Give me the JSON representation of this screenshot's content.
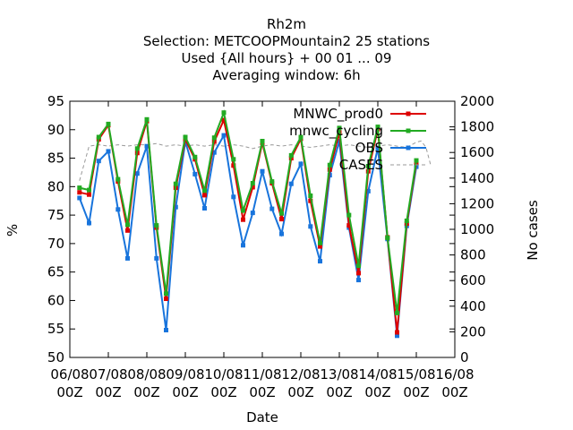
{
  "chart_data": {
    "type": "line",
    "title_lines": [
      "Rh2m",
      "Selection: METCOOPMountain2     25 stations",
      "Used {All hours} + 00 01 ... 09",
      "Averaging window:  6h"
    ],
    "xlabel": "Date",
    "ylabel": "%",
    "y2label": "No cases",
    "ylim": [
      50,
      95
    ],
    "y2lim": [
      0,
      2000
    ],
    "yticks": [
      "50",
      "55",
      "60",
      "65",
      "70",
      "75",
      "80",
      "85",
      "90",
      "95"
    ],
    "y2ticks": [
      "0",
      "200",
      "400",
      "600",
      "800",
      "1000",
      "1200",
      "1400",
      "1600",
      "1800",
      "2000"
    ],
    "xticks": [
      {
        "date": "06/08",
        "hour": "00Z"
      },
      {
        "date": "07/08",
        "hour": "00Z"
      },
      {
        "date": "08/08",
        "hour": "00Z"
      },
      {
        "date": "09/08",
        "hour": "00Z"
      },
      {
        "date": "10/08",
        "hour": "00Z"
      },
      {
        "date": "11/08",
        "hour": "00Z"
      },
      {
        "date": "12/08",
        "hour": "00Z"
      },
      {
        "date": "13/08",
        "hour": "00Z"
      },
      {
        "date": "14/08",
        "hour": "00Z"
      },
      {
        "date": "15/08",
        "hour": "00Z"
      },
      {
        "date": "16/08",
        "hour": "00Z"
      }
    ],
    "legend_position": "top-right",
    "series": [
      {
        "name": "MNWC_prod0",
        "color": "#dd0000",
        "x": [
          "06/08 06Z",
          "06/08 12Z",
          "06/08 18Z",
          "07/08 00Z",
          "07/08 06Z",
          "07/08 12Z",
          "07/08 18Z",
          "08/08 00Z",
          "08/08 06Z",
          "08/08 12Z",
          "08/08 18Z",
          "09/08 00Z",
          "09/08 06Z",
          "09/08 12Z",
          "09/08 18Z",
          "10/08 00Z",
          "10/08 06Z",
          "10/08 12Z",
          "10/08 18Z",
          "11/08 00Z",
          "11/08 06Z",
          "11/08 12Z",
          "11/08 18Z",
          "12/08 00Z",
          "12/08 06Z",
          "12/08 12Z",
          "12/08 18Z",
          "13/08 00Z",
          "13/08 06Z",
          "13/08 12Z",
          "13/08 18Z",
          "14/08 00Z",
          "14/08 06Z",
          "14/08 12Z",
          "14/08 18Z",
          "15/08 00Z"
        ],
        "values": [
          79.0,
          78.6,
          88.3,
          90.8,
          80.9,
          72.3,
          85.9,
          91.5,
          72.8,
          60.3,
          79.8,
          88.3,
          84.8,
          78.5,
          87.9,
          91.7,
          83.7,
          74.2,
          79.9,
          87.7,
          80.6,
          74.3,
          85.0,
          88.4,
          77.5,
          69.5,
          83.0,
          89.5,
          73.2,
          64.8,
          82.7,
          90.1,
          71.1,
          54.4,
          73.5,
          84.2
        ]
      },
      {
        "name": "mnwc_cycling",
        "color": "#22aa22",
        "x": [
          "06/08 06Z",
          "06/08 12Z",
          "06/08 18Z",
          "07/08 00Z",
          "07/08 06Z",
          "07/08 12Z",
          "07/08 18Z",
          "08/08 00Z",
          "08/08 06Z",
          "08/08 12Z",
          "08/08 18Z",
          "09/08 00Z",
          "09/08 06Z",
          "09/08 12Z",
          "09/08 18Z",
          "10/08 00Z",
          "10/08 06Z",
          "10/08 12Z",
          "10/08 18Z",
          "11/08 00Z",
          "11/08 06Z",
          "11/08 12Z",
          "11/08 18Z",
          "12/08 00Z",
          "12/08 06Z",
          "12/08 12Z",
          "12/08 18Z",
          "13/08 00Z",
          "13/08 06Z",
          "13/08 12Z",
          "13/08 18Z",
          "14/08 00Z",
          "14/08 06Z",
          "14/08 12Z",
          "14/08 18Z",
          "15/08 00Z"
        ],
        "values": [
          79.8,
          79.4,
          88.7,
          91.0,
          81.3,
          73.3,
          86.7,
          91.8,
          73.2,
          61.2,
          80.5,
          88.7,
          85.2,
          79.3,
          88.6,
          93.0,
          84.8,
          75.8,
          80.6,
          88.0,
          80.9,
          75.3,
          85.5,
          88.7,
          78.4,
          70.1,
          83.8,
          90.3,
          75.0,
          66.1,
          83.6,
          90.5,
          71.0,
          57.8,
          74.0,
          84.6
        ]
      },
      {
        "name": "OBS",
        "color": "#1874dc",
        "x": [
          "06/08 06Z",
          "06/08 12Z",
          "06/08 18Z",
          "07/08 00Z",
          "07/08 06Z",
          "07/08 12Z",
          "07/08 18Z",
          "08/08 00Z",
          "08/08 06Z",
          "08/08 12Z",
          "08/08 18Z",
          "09/08 00Z",
          "09/08 06Z",
          "09/08 12Z",
          "09/08 18Z",
          "10/08 00Z",
          "10/08 06Z",
          "10/08 12Z",
          "10/08 18Z",
          "11/08 00Z",
          "11/08 06Z",
          "11/08 12Z",
          "11/08 18Z",
          "12/08 00Z",
          "12/08 06Z",
          "12/08 12Z",
          "12/08 18Z",
          "13/08 00Z",
          "13/08 06Z",
          "13/08 12Z",
          "13/08 18Z",
          "14/08 00Z",
          "14/08 06Z",
          "14/08 12Z",
          "14/08 18Z",
          "15/08 00Z"
        ],
        "values": [
          78.0,
          73.6,
          84.5,
          86.2,
          76.0,
          67.4,
          82.3,
          87.1,
          67.4,
          54.8,
          76.4,
          87.9,
          82.2,
          76.2,
          86.0,
          89.0,
          78.2,
          69.7,
          75.4,
          82.7,
          76.1,
          71.7,
          80.5,
          84.0,
          73.0,
          66.9,
          82.0,
          88.0,
          72.8,
          63.6,
          79.2,
          86.8,
          70.8,
          53.8,
          73.1,
          83.5
        ]
      },
      {
        "name": "CASES",
        "axis": "y2",
        "color": "#999999",
        "x": [
          "06/08 06Z",
          "06/08 12Z",
          "06/08 18Z",
          "07/08 00Z",
          "07/08 06Z",
          "07/08 12Z",
          "07/08 18Z",
          "08/08 00Z",
          "08/08 06Z",
          "08/08 12Z",
          "08/08 18Z",
          "09/08 00Z",
          "09/08 06Z",
          "09/08 12Z",
          "09/08 18Z",
          "10/08 00Z",
          "10/08 06Z",
          "10/08 12Z",
          "10/08 18Z",
          "11/08 00Z",
          "11/08 06Z",
          "11/08 12Z",
          "11/08 18Z",
          "12/08 00Z",
          "12/08 06Z",
          "12/08 12Z",
          "12/08 18Z",
          "13/08 00Z",
          "13/08 06Z",
          "13/08 12Z",
          "13/08 18Z",
          "14/08 00Z",
          "14/08 06Z",
          "14/08 12Z",
          "14/08 18Z",
          "15/08 00Z",
          "15/08 03Z",
          "15/08 06Z",
          "15/08 09Z"
        ],
        "values": [
          1380,
          1650,
          1660,
          1650,
          1660,
          1650,
          1660,
          1660,
          1670,
          1650,
          1660,
          1650,
          1660,
          1650,
          1660,
          1650,
          1660,
          1650,
          1630,
          1650,
          1660,
          1650,
          1660,
          1650,
          1640,
          1650,
          1660,
          1650,
          1660,
          1650,
          1640,
          1650,
          1660,
          1650,
          1640,
          1680,
          1690,
          1640,
          1500
        ]
      }
    ]
  }
}
